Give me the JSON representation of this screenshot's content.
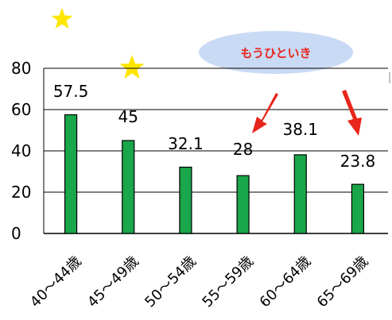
{
  "chart_data": {
    "type": "bar",
    "categories": [
      "40～44歳",
      "45～49歳",
      "50～54歳",
      "55～59歳",
      "60～64歳",
      "65～69歳"
    ],
    "values": [
      57.5,
      45,
      32.1,
      28,
      38.1,
      23.8
    ],
    "title": "",
    "xlabel": "",
    "ylabel": "",
    "ylim": [
      0,
      80
    ],
    "yticks": [
      0,
      20,
      40,
      60,
      80
    ],
    "grid": true,
    "legend": "none"
  },
  "annotation": {
    "text": "もうひといき",
    "color": "#e8261c",
    "bubble_color": "#c9daf5"
  },
  "colors": {
    "bar_fill": "#1aa64a",
    "bar_stroke": "#000000",
    "grid": "#000000",
    "arrow": "#e8261c",
    "star": "#ffe600"
  },
  "icons": [
    "star-icon",
    "star-icon",
    "arrow-icon",
    "arrow-icon"
  ]
}
